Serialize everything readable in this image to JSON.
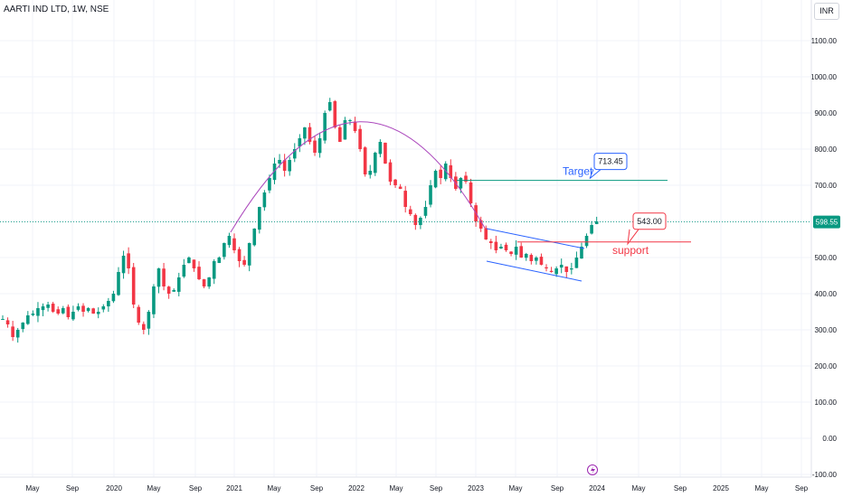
{
  "header": {
    "title": "AARTI IND LTD, 1W, NSE",
    "currency": "INR"
  },
  "chart_data": {
    "type": "candlestick",
    "title": "AARTI IND LTD, 1W, NSE",
    "y_unit": "INR",
    "ylim": [
      -100,
      1150
    ],
    "y_ticks": [
      "1100.00",
      "1000.00",
      "900.00",
      "800.00",
      "700.00",
      "600.00",
      "500.00",
      "400.00",
      "300.00",
      "200.00",
      "100.00",
      "0.00",
      "-100.00"
    ],
    "x_ticks": [
      "May",
      "Sep",
      "2020",
      "May",
      "Sep",
      "2021",
      "May",
      "Sep",
      "2022",
      "May",
      "Sep",
      "2023",
      "May",
      "Sep",
      "2024",
      "May",
      "Sep",
      "2025",
      "May",
      "Sep"
    ],
    "current_price": {
      "value": 598.55,
      "label": "598.55"
    },
    "price_path": [
      [
        0,
        330
      ],
      [
        3,
        315
      ],
      [
        6,
        280
      ],
      [
        9,
        300
      ],
      [
        12,
        320
      ],
      [
        15,
        340
      ],
      [
        18,
        345
      ],
      [
        21,
        360
      ],
      [
        24,
        365
      ],
      [
        27,
        370
      ],
      [
        30,
        350
      ],
      [
        33,
        345
      ],
      [
        36,
        360
      ],
      [
        39,
        335
      ],
      [
        42,
        350
      ],
      [
        45,
        365
      ],
      [
        48,
        350
      ],
      [
        51,
        360
      ],
      [
        54,
        345
      ],
      [
        57,
        350
      ],
      [
        60,
        365
      ],
      [
        63,
        380
      ],
      [
        66,
        400
      ],
      [
        69,
        460
      ],
      [
        72,
        505
      ],
      [
        75,
        470
      ],
      [
        78,
        370
      ],
      [
        81,
        320
      ],
      [
        84,
        300
      ],
      [
        87,
        350
      ],
      [
        90,
        420
      ],
      [
        93,
        470
      ],
      [
        96,
        420
      ],
      [
        99,
        400
      ],
      [
        102,
        410
      ],
      [
        105,
        445
      ],
      [
        108,
        480
      ],
      [
        111,
        500
      ],
      [
        114,
        470
      ],
      [
        117,
        440
      ],
      [
        120,
        420
      ],
      [
        123,
        445
      ],
      [
        126,
        490
      ],
      [
        129,
        500
      ],
      [
        132,
        540
      ],
      [
        135,
        560
      ],
      [
        138,
        520
      ],
      [
        141,
        490
      ],
      [
        144,
        480
      ],
      [
        147,
        540
      ],
      [
        150,
        580
      ],
      [
        153,
        640
      ],
      [
        156,
        680
      ],
      [
        159,
        720
      ],
      [
        162,
        760
      ],
      [
        165,
        770
      ],
      [
        168,
        740
      ],
      [
        171,
        770
      ],
      [
        174,
        800
      ],
      [
        177,
        830
      ],
      [
        180,
        860
      ],
      [
        183,
        820
      ],
      [
        186,
        790
      ],
      [
        189,
        830
      ],
      [
        192,
        900
      ],
      [
        195,
        930
      ],
      [
        198,
        860
      ],
      [
        201,
        820
      ],
      [
        204,
        880
      ],
      [
        207,
        880
      ],
      [
        210,
        850
      ],
      [
        213,
        800
      ],
      [
        216,
        730
      ],
      [
        219,
        740
      ],
      [
        222,
        790
      ],
      [
        225,
        820
      ],
      [
        228,
        760
      ],
      [
        231,
        710
      ],
      [
        234,
        700
      ],
      [
        237,
        690
      ],
      [
        240,
        640
      ],
      [
        243,
        620
      ],
      [
        246,
        590
      ],
      [
        249,
        610
      ],
      [
        252,
        640
      ],
      [
        255,
        700
      ],
      [
        258,
        740
      ],
      [
        261,
        720
      ],
      [
        264,
        760
      ],
      [
        267,
        720
      ],
      [
        270,
        690
      ],
      [
        273,
        720
      ],
      [
        276,
        710
      ],
      [
        279,
        650
      ],
      [
        282,
        600
      ],
      [
        285,
        580
      ],
      [
        288,
        550
      ],
      [
        291,
        540
      ],
      [
        294,
        520
      ],
      [
        297,
        530
      ],
      [
        300,
        520
      ],
      [
        303,
        510
      ],
      [
        306,
        530
      ],
      [
        309,
        500
      ],
      [
        312,
        510
      ],
      [
        315,
        490
      ],
      [
        318,
        500
      ],
      [
        321,
        480
      ],
      [
        324,
        470
      ],
      [
        327,
        460
      ],
      [
        330,
        470
      ],
      [
        333,
        480
      ],
      [
        336,
        460
      ],
      [
        339,
        470
      ],
      [
        342,
        500
      ],
      [
        345,
        530
      ],
      [
        348,
        560
      ],
      [
        351,
        590
      ],
      [
        354,
        600
      ]
    ],
    "annotations": {
      "target": {
        "label": "Target",
        "value": 713.45,
        "value_label": "713.45",
        "color": "#2962ff"
      },
      "support": {
        "label": "support",
        "value": 543.0,
        "value_label": "543.00",
        "color": "#f23645"
      },
      "arc": {
        "color": "#ab47bc"
      },
      "channel": {
        "color": "#2962ff"
      }
    },
    "grid": true,
    "legend": "none"
  },
  "colors": {
    "up": "#089981",
    "down": "#f23645",
    "grid": "#f0f3fa",
    "price_badge": "#089981"
  }
}
